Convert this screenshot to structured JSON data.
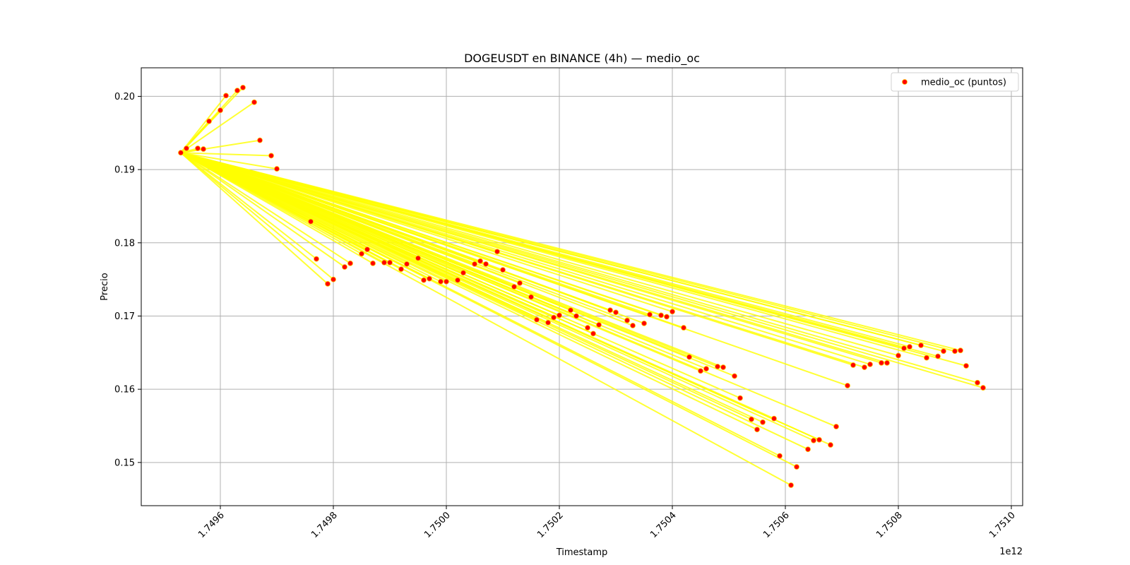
{
  "chart_data": {
    "type": "scatter",
    "title": "DOGEUSDT en BINANCE (4h) — medio_oc",
    "xlabel": "Timestamp",
    "ylabel": "Precio",
    "x_offset_label": "1e12",
    "xlim": [
      1.74946,
      1.75102
    ],
    "ylim": [
      0.1441,
      0.2039
    ],
    "x_ticks": [
      1.7496,
      1.7498,
      1.75,
      1.7502,
      1.7504,
      1.7506,
      1.7508,
      1.751
    ],
    "x_tick_labels": [
      "1.7496",
      "1.7498",
      "1.7500",
      "1.7502",
      "1.7504",
      "1.7506",
      "1.7508",
      "1.7510"
    ],
    "y_ticks": [
      0.15,
      0.16,
      0.17,
      0.18,
      0.19,
      0.2
    ],
    "y_tick_labels": [
      "0.15",
      "0.16",
      "0.17",
      "0.18",
      "0.19",
      "0.20"
    ],
    "grid": true,
    "legend": {
      "position": "top-right",
      "entries": [
        "medio_oc (puntos)"
      ]
    },
    "colors": {
      "line": "#ffff00",
      "point": "#ff0000",
      "point_edge": "#ffc000",
      "grid": "#b0b0b0"
    },
    "line_style": "fan from first point to every other point",
    "series": [
      {
        "name": "medio_oc (puntos)",
        "x": [
          1.74953,
          1.74954,
          1.74956,
          1.74957,
          1.74958,
          1.7496,
          1.74961,
          1.74963,
          1.74964,
          1.74966,
          1.74967,
          1.74969,
          1.7497,
          1.74976,
          1.74977,
          1.74979,
          1.7498,
          1.74982,
          1.74983,
          1.74985,
          1.74986,
          1.74987,
          1.74989,
          1.7499,
          1.74992,
          1.74993,
          1.74995,
          1.74996,
          1.74997,
          1.74999,
          1.75,
          1.75002,
          1.75003,
          1.75005,
          1.75006,
          1.75007,
          1.75009,
          1.7501,
          1.75012,
          1.75013,
          1.75015,
          1.75016,
          1.75018,
          1.75019,
          1.7502,
          1.75022,
          1.75023,
          1.75025,
          1.75026,
          1.75027,
          1.75029,
          1.7503,
          1.75032,
          1.75033,
          1.75035,
          1.75036,
          1.75038,
          1.75039,
          1.7504,
          1.75042,
          1.75043,
          1.75045,
          1.75046,
          1.75048,
          1.75049,
          1.75051,
          1.75052,
          1.75054,
          1.75055,
          1.75056,
          1.75058,
          1.75059,
          1.75061,
          1.75062,
          1.75064,
          1.75065,
          1.75066,
          1.75068,
          1.75069,
          1.75071,
          1.75072,
          1.75074,
          1.75075,
          1.75077,
          1.75078,
          1.7508,
          1.75081,
          1.75082,
          1.75084,
          1.75085,
          1.75087,
          1.75088,
          1.7509,
          1.75091,
          1.75092,
          1.75094,
          1.75095
        ],
        "y": [
          0.1923,
          0.1929,
          0.1929,
          0.1928,
          0.1966,
          0.1981,
          0.2001,
          0.2008,
          0.2012,
          0.1992,
          0.194,
          0.1919,
          0.1901,
          0.1829,
          0.1778,
          0.1744,
          0.175,
          0.1767,
          0.1772,
          0.1785,
          0.1791,
          0.1772,
          0.1773,
          0.1773,
          0.1764,
          0.1771,
          0.1779,
          0.1749,
          0.1751,
          0.1747,
          0.1747,
          0.1749,
          0.1759,
          0.1771,
          0.1775,
          0.1771,
          0.1788,
          0.1763,
          0.174,
          0.1745,
          0.1726,
          0.1695,
          0.1691,
          0.1698,
          0.1701,
          0.1708,
          0.17,
          0.1684,
          0.1676,
          0.1688,
          0.1708,
          0.1705,
          0.1694,
          0.1687,
          0.169,
          0.1702,
          0.1701,
          0.1699,
          0.1706,
          0.1684,
          0.1644,
          0.1625,
          0.1628,
          0.1631,
          0.163,
          0.1618,
          0.1588,
          0.1559,
          0.1545,
          0.1555,
          0.156,
          0.1509,
          0.1469,
          0.1494,
          0.1518,
          0.153,
          0.1531,
          0.1524,
          0.1549,
          0.1605,
          0.1633,
          0.163,
          0.1634,
          0.1636,
          0.1636,
          0.1646,
          0.1656,
          0.1658,
          0.166,
          0.1643,
          0.1645,
          0.1652,
          0.1652,
          0.1653,
          0.1632,
          0.1609,
          0.1602
        ]
      }
    ]
  }
}
